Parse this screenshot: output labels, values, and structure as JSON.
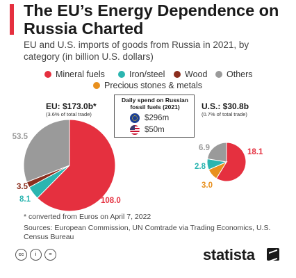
{
  "title": "The EU’s Energy Dependence on Russia Charted",
  "subtitle": "EU and U.S. imports of goods from Russia in 2021, by category (in billion U.S. dollars)",
  "legend": [
    {
      "label": "Mineral fuels",
      "color": "#e5303f"
    },
    {
      "label": "Iron/steel",
      "color": "#2bb5b0"
    },
    {
      "label": "Wood",
      "color": "#8b2e1e"
    },
    {
      "label": "Others",
      "color": "#9a9a9a"
    },
    {
      "label": "Precious stones & metals",
      "color": "#e8901e"
    }
  ],
  "eu": {
    "title": "EU: $173.0b*",
    "subtitle": "(3.6% of total trade)"
  },
  "us": {
    "title": "U.S.: $30.8b",
    "subtitle": "(0.7% of total trade)"
  },
  "daily": {
    "title_line1": "Daily spend on Russian",
    "title_line2": "fossil fuels (2021)",
    "eu_value": "$296m",
    "us_value": "$50m",
    "eu_flag_icon": "eu-flag-icon",
    "us_flag_icon": "us-flag-icon"
  },
  "footnote": "* converted from Euros on April 7, 2022",
  "sources": "Sources: European Commission, UN Comtrade via Trading Economics, U.S. Census Bureau",
  "brand": "statista",
  "chart_data": [
    {
      "type": "pie",
      "title": "EU: $173.0b*",
      "slices": [
        {
          "label": "Mineral fuels",
          "value": 108.0,
          "display": "108.0",
          "color": "#e5303f"
        },
        {
          "label": "Iron/steel",
          "value": 8.1,
          "display": "8.1",
          "color": "#2bb5b0"
        },
        {
          "label": "Wood",
          "value": 3.5,
          "display": "3.5",
          "color": "#8b2e1e"
        },
        {
          "label": "Others",
          "value": 53.5,
          "display": "53.5",
          "color": "#9a9a9a"
        }
      ]
    },
    {
      "type": "pie",
      "title": "U.S.: $30.8b",
      "slices": [
        {
          "label": "Mineral fuels",
          "value": 18.1,
          "display": "18.1",
          "color": "#e5303f"
        },
        {
          "label": "Precious stones & metals",
          "value": 3.0,
          "display": "3.0",
          "color": "#e8901e"
        },
        {
          "label": "Iron/steel",
          "value": 2.8,
          "display": "2.8",
          "color": "#2bb5b0"
        },
        {
          "label": "Others",
          "value": 6.9,
          "display": "6.9",
          "color": "#9a9a9a"
        }
      ]
    }
  ]
}
